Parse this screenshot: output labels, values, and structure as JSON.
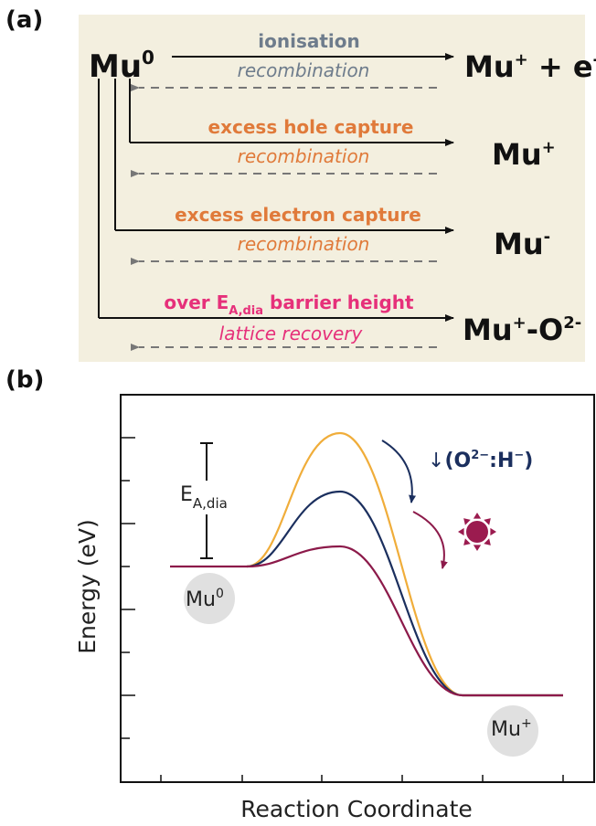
{
  "panel_a": {
    "label": "(a)",
    "source": {
      "main": "Mu",
      "sup": "0"
    },
    "colors": {
      "background": "#f3efdf",
      "arrow": "#111111",
      "dashed": "#777777",
      "ionisation": "#6e7c8c",
      "capture": "#e07a3a",
      "barrier": "#e6307a"
    },
    "processes": [
      {
        "forward": "ionisation",
        "reverse": "recombination",
        "color": "ionisation",
        "product": {
          "base": "Mu",
          "sup": "+",
          "tail": " + e",
          "tail_sup": "-"
        }
      },
      {
        "forward": "excess hole capture",
        "reverse": "recombination",
        "color": "capture",
        "product": {
          "base": "Mu",
          "sup": "+"
        }
      },
      {
        "forward": "excess electron capture",
        "reverse": "recombination",
        "color": "capture",
        "product": {
          "base": "Mu",
          "sup": "-"
        }
      },
      {
        "forward_pre": "over E",
        "forward_sub": "A,dia",
        "forward_post": " barrier height",
        "reverse": "lattice recovery",
        "color": "barrier",
        "product": {
          "base": "Mu",
          "sup": "+",
          "tail": "-O",
          "tail_sup": "2-"
        }
      }
    ]
  },
  "panel_b": {
    "label": "(b)",
    "xlabel": "Reaction Coordinate",
    "ylabel": "Energy (eV)",
    "barrier_label": {
      "main": "E",
      "sub": "A,dia"
    },
    "start_state": {
      "main": "Mu",
      "sup": "0"
    },
    "end_state": {
      "main": "Mu",
      "sup": "+"
    },
    "annotation": {
      "arrow": "↓",
      "text_pre": "(O",
      "sup": "2−",
      "text_mid": ":H",
      "sup2": "−",
      "text_post": ")"
    },
    "colors": {
      "high": "#f0ad3a",
      "mid": "#1b2f5e",
      "low": "#8c1a4a",
      "sun": "#9b1b4f",
      "annotation": "#1b2f5e",
      "state_circle": "#e0e0e0"
    }
  },
  "chart_data": {
    "type": "line",
    "title": "",
    "xlabel": "Reaction Coordinate",
    "ylabel": "Energy (eV)",
    "series": [
      {
        "color": "#f0ad3a",
        "peak_relative": 1.46
      },
      {
        "color": "#1b2f5e",
        "peak_relative": 0.82
      },
      {
        "color": "#8c1a4a",
        "peak_relative": 0.22
      }
    ],
    "notes": "No numeric tick labels are printed; curves go from the Mu0 plateau (level 0) over a barrier down to the Mu+ plateau (level -1.5, relative units)."
  }
}
